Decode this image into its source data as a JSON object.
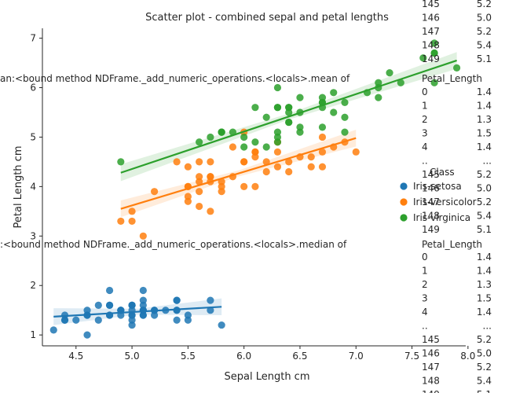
{
  "chart_data": {
    "type": "scatter",
    "title": "Scatter plot - combined sepal and petal lengths",
    "xlabel": "Sepal Length cm",
    "ylabel": "Petal Length cm",
    "xlim": [
      4.2,
      7.98
    ],
    "ylim": [
      0.78,
      7.2
    ],
    "x_ticks": [
      "4.5",
      "5.0",
      "5.5",
      "6.0",
      "6.5",
      "7.0",
      "7.5",
      "8.0"
    ],
    "y_ticks": [
      "1",
      "2",
      "3",
      "4",
      "5",
      "6",
      "7"
    ],
    "legend": {
      "title": "Class",
      "placement": "right",
      "entries": [
        "Iris-setosa",
        "Iris-versicolor",
        "Iris-virginica"
      ]
    },
    "series": [
      {
        "name": "Iris-setosa",
        "color": "#1f77b4",
        "points": [
          [
            5.1,
            1.4
          ],
          [
            4.9,
            1.4
          ],
          [
            4.7,
            1.3
          ],
          [
            4.6,
            1.5
          ],
          [
            5.0,
            1.4
          ],
          [
            5.4,
            1.7
          ],
          [
            4.6,
            1.4
          ],
          [
            5.0,
            1.5
          ],
          [
            4.4,
            1.4
          ],
          [
            4.9,
            1.5
          ],
          [
            5.4,
            1.5
          ],
          [
            4.8,
            1.6
          ],
          [
            4.8,
            1.4
          ],
          [
            4.3,
            1.1
          ],
          [
            5.8,
            1.2
          ],
          [
            5.7,
            1.5
          ],
          [
            5.4,
            1.3
          ],
          [
            5.1,
            1.4
          ],
          [
            5.7,
            1.7
          ],
          [
            5.1,
            1.5
          ],
          [
            5.4,
            1.7
          ],
          [
            5.1,
            1.5
          ],
          [
            4.6,
            1.0
          ],
          [
            5.1,
            1.7
          ],
          [
            4.8,
            1.9
          ],
          [
            5.0,
            1.6
          ],
          [
            5.0,
            1.6
          ],
          [
            5.2,
            1.5
          ],
          [
            5.2,
            1.4
          ],
          [
            4.7,
            1.6
          ],
          [
            4.8,
            1.6
          ],
          [
            5.4,
            1.5
          ],
          [
            5.2,
            1.5
          ],
          [
            5.5,
            1.4
          ],
          [
            4.9,
            1.5
          ],
          [
            5.0,
            1.2
          ],
          [
            5.5,
            1.3
          ],
          [
            4.9,
            1.5
          ],
          [
            4.4,
            1.3
          ],
          [
            5.1,
            1.5
          ],
          [
            5.0,
            1.3
          ],
          [
            4.5,
            1.3
          ],
          [
            4.4,
            1.3
          ],
          [
            5.0,
            1.6
          ],
          [
            5.1,
            1.9
          ],
          [
            4.8,
            1.4
          ],
          [
            5.1,
            1.6
          ],
          [
            4.6,
            1.4
          ],
          [
            5.3,
            1.5
          ],
          [
            5.0,
            1.4
          ]
        ],
        "fit": {
          "x": [
            4.3,
            5.8
          ],
          "y": [
            1.37,
            1.57
          ]
        }
      },
      {
        "name": "Iris-versicolor",
        "color": "#ff7f0e",
        "points": [
          [
            7.0,
            4.7
          ],
          [
            6.4,
            4.5
          ],
          [
            6.9,
            4.9
          ],
          [
            5.5,
            4.0
          ],
          [
            6.5,
            4.6
          ],
          [
            5.7,
            4.5
          ],
          [
            6.3,
            4.7
          ],
          [
            4.9,
            3.3
          ],
          [
            6.6,
            4.6
          ],
          [
            5.2,
            3.9
          ],
          [
            5.0,
            3.5
          ],
          [
            5.9,
            4.2
          ],
          [
            6.0,
            4.0
          ],
          [
            6.1,
            4.7
          ],
          [
            5.6,
            3.6
          ],
          [
            6.7,
            4.4
          ],
          [
            5.6,
            4.5
          ],
          [
            5.8,
            4.1
          ],
          [
            6.2,
            4.5
          ],
          [
            5.6,
            3.9
          ],
          [
            5.9,
            4.8
          ],
          [
            6.1,
            4.0
          ],
          [
            6.3,
            4.9
          ],
          [
            6.1,
            4.7
          ],
          [
            6.4,
            4.3
          ],
          [
            6.6,
            4.4
          ],
          [
            6.8,
            4.8
          ],
          [
            6.7,
            5.0
          ],
          [
            6.0,
            4.5
          ],
          [
            5.7,
            3.5
          ],
          [
            5.5,
            3.8
          ],
          [
            5.5,
            3.7
          ],
          [
            5.8,
            3.9
          ],
          [
            6.0,
            5.1
          ],
          [
            5.4,
            4.5
          ],
          [
            6.0,
            4.5
          ],
          [
            6.7,
            4.7
          ],
          [
            6.3,
            4.4
          ],
          [
            5.6,
            4.1
          ],
          [
            5.5,
            4.0
          ],
          [
            5.5,
            4.4
          ],
          [
            6.1,
            4.6
          ],
          [
            5.8,
            4.0
          ],
          [
            5.0,
            3.3
          ],
          [
            5.6,
            4.2
          ],
          [
            5.7,
            4.2
          ],
          [
            5.7,
            4.2
          ],
          [
            6.2,
            4.3
          ],
          [
            5.1,
            3.0
          ],
          [
            5.7,
            4.1
          ]
        ],
        "fit": {
          "x": [
            4.9,
            7.0
          ],
          "y": [
            3.55,
            4.98
          ]
        }
      },
      {
        "name": "Iris-virginica",
        "color": "#2ca02c",
        "points": [
          [
            6.3,
            6.0
          ],
          [
            5.8,
            5.1
          ],
          [
            7.1,
            5.9
          ],
          [
            6.3,
            5.6
          ],
          [
            6.5,
            5.8
          ],
          [
            7.6,
            6.6
          ],
          [
            4.9,
            4.5
          ],
          [
            7.3,
            6.3
          ],
          [
            6.7,
            5.8
          ],
          [
            7.2,
            6.1
          ],
          [
            6.5,
            5.1
          ],
          [
            6.4,
            5.3
          ],
          [
            6.8,
            5.5
          ],
          [
            5.7,
            5.0
          ],
          [
            5.8,
            5.1
          ],
          [
            6.4,
            5.3
          ],
          [
            6.5,
            5.5
          ],
          [
            7.7,
            6.7
          ],
          [
            7.7,
            6.9
          ],
          [
            6.0,
            5.0
          ],
          [
            6.9,
            5.7
          ],
          [
            5.6,
            4.9
          ],
          [
            7.7,
            6.7
          ],
          [
            6.3,
            4.9
          ],
          [
            6.7,
            5.7
          ],
          [
            7.2,
            6.0
          ],
          [
            6.2,
            4.8
          ],
          [
            6.1,
            4.9
          ],
          [
            6.4,
            5.6
          ],
          [
            7.2,
            5.8
          ],
          [
            7.4,
            6.1
          ],
          [
            7.9,
            6.4
          ],
          [
            6.4,
            5.6
          ],
          [
            6.3,
            5.1
          ],
          [
            6.1,
            5.6
          ],
          [
            7.7,
            6.1
          ],
          [
            6.3,
            5.6
          ],
          [
            6.4,
            5.5
          ],
          [
            6.0,
            4.8
          ],
          [
            6.9,
            5.4
          ],
          [
            6.7,
            5.6
          ],
          [
            6.9,
            5.1
          ],
          [
            5.8,
            5.1
          ],
          [
            6.8,
            5.9
          ],
          [
            6.7,
            5.7
          ],
          [
            6.7,
            5.2
          ],
          [
            6.3,
            5.0
          ],
          [
            6.5,
            5.2
          ],
          [
            6.2,
            5.4
          ],
          [
            5.9,
            5.1
          ]
        ],
        "fit": {
          "x": [
            4.9,
            7.9
          ],
          "y": [
            4.28,
            6.55
          ]
        }
      }
    ],
    "overlay_text": {
      "mean_label": "an:<bound method NDFrame._add_numeric_operations.<locals>.mean of",
      "median_label": ":<bound method NDFrame._add_numeric_operations.<locals>.median of",
      "column_header": "Petal_Length",
      "block_top": [
        [
          "145",
          "5.2"
        ],
        [
          "146",
          "5.0"
        ],
        [
          "147",
          "5.2"
        ],
        [
          "148",
          "5.4"
        ],
        [
          "149",
          "5.1"
        ]
      ],
      "block_mean": [
        [
          "0",
          "1.4"
        ],
        [
          "1",
          "1.4"
        ],
        [
          "2",
          "1.3"
        ],
        [
          "3",
          "1.5"
        ],
        [
          "4",
          "1.4"
        ],
        [
          "..",
          "..."
        ],
        [
          "145",
          "5.2"
        ],
        [
          "146",
          "5.0"
        ],
        [
          "147",
          "5.2"
        ],
        [
          "148",
          "5.4"
        ],
        [
          "149",
          "5.1"
        ]
      ],
      "block_median": [
        [
          "0",
          "1.4"
        ],
        [
          "1",
          "1.4"
        ],
        [
          "2",
          "1.3"
        ],
        [
          "3",
          "1.5"
        ],
        [
          "4",
          "1.4"
        ],
        [
          "..",
          "..."
        ],
        [
          "145",
          "5.2"
        ],
        [
          "146",
          "5.0"
        ],
        [
          "147",
          "5.2"
        ],
        [
          "148",
          "5.4"
        ],
        [
          "149",
          "5.1"
        ]
      ]
    }
  }
}
